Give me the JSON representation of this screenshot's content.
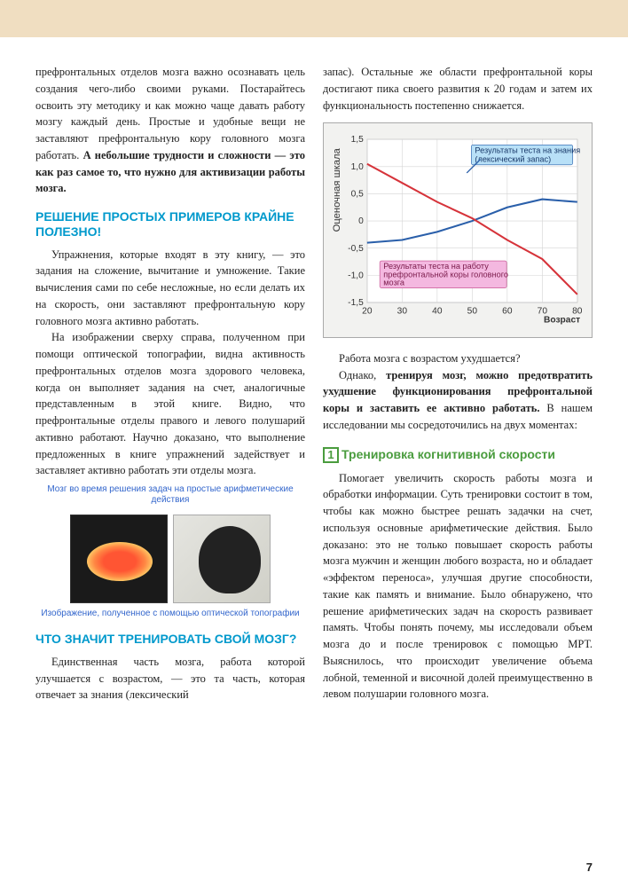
{
  "page_number": "7",
  "top_bar_color": "#f0dec1",
  "left": {
    "p1": "префронтальных отделов мозга важно осознавать цель создания чего-либо своими руками. Постарайтесь освоить эту методику и как можно чаще давать работу мозгу каждый день. Простые и удобные вещи не заставляют префронтальную кору головного мозга работать. ",
    "p1_bold": "А небольшие трудности и сложности — это как раз самое то, что нужно для активизации работы мозга.",
    "h1": "РЕШЕНИЕ ПРОСТЫХ ПРИМЕРОВ КРАЙНЕ ПОЛЕЗНО!",
    "p2": "Упражнения, которые входят в эту книгу, — это задания на сложение, вычитание и умножение. Такие вычисления сами по себе несложные, но если делать их на скорость, они заставляют префронтальную кору головного мозга активно работать.",
    "p3": "На изображении сверху справа, полученном при помощи оптической топографии, видна активность префронтальных отделов мозга здорового человека, когда он выполняет задания на счет, аналогичные представленным в этой книге. Видно, что префронтальные отделы правого и левого полушарий активно работают. Научно доказано, что выполнение предложенных в книге упражнений задействует и заставляет активно работать эти отделы мозга.",
    "img_caption_top": "Мозг во время решения задач на простые арифметические действия",
    "img_caption_bottom": "Изображение, полученное с помощью оптической топографии",
    "h2": "ЧТО ЗНАЧИТ ТРЕНИРОВАТЬ СВОЙ МОЗГ?",
    "p4": "Единственная часть мозга, работа которой улучшается с возрастом, — это та часть, которая отвечает за знания (лексический"
  },
  "right": {
    "p1": "запас). Остальные же области префронтальной коры достигают пика своего развития к 20 годам и затем их функциональность постепенно снижается.",
    "p2": "Работа мозга с возрастом ухудшается?",
    "p3a": "Однако, ",
    "p3_bold": "тренируя мозг, можно предотвратить ухудшение функционирования префронтальной коры и заставить ее активно работать.",
    "p3b": " В нашем исследовании мы сосредоточились на двух моментах:",
    "h1_num": "1",
    "h1": "Тренировка когнитивной скорости",
    "p4": "Помогает увеличить скорость работы мозга и обработки информации. Суть тренировки состоит в том, чтобы как можно быстрее решать задачки на счет, используя основные арифметические действия. Было доказано: это не только повышает скорость работы мозга мужчин и женщин любого возраста, но и обладает «эффектом переноса», улучшая другие способности, такие как память и внимание. Было обнаружено, что решение арифметических задач на скорость развивает память. Чтобы понять почему, мы исследовали объем мозга до и после тренировок с помощью МРТ. Выяснилось, что происходит увеличение объема лобной, теменной и височной долей преимущественно в левом полушарии головного мозга."
  },
  "chart": {
    "type": "line",
    "background_color": "#f2f2f0",
    "plot_bg": "#ffffff",
    "grid_color": "#d5d5d5",
    "xlabel": "Возраст",
    "ylabel": "Оценочная шкала",
    "xlim": [
      20,
      80
    ],
    "ylim": [
      -1.5,
      1.5
    ],
    "xticks": [
      20,
      30,
      40,
      50,
      60,
      70,
      80
    ],
    "yticks": [
      -1.5,
      -1.0,
      -0.5,
      0,
      0.5,
      1.0,
      1.5
    ],
    "series": [
      {
        "name": "blue",
        "label": "Результаты теста на знания (лексический запас)",
        "label_bg": "#b8e0f7",
        "color": "#2a5faa",
        "x": [
          20,
          30,
          40,
          50,
          60,
          70,
          80
        ],
        "y": [
          -0.4,
          -0.35,
          -0.2,
          0.0,
          0.25,
          0.4,
          0.35
        ]
      },
      {
        "name": "red",
        "label": "Результаты теста на работу префронтальной коры головного мозга",
        "label_bg": "#f4b8e0",
        "color": "#d6333a",
        "x": [
          20,
          30,
          40,
          50,
          60,
          70,
          80
        ],
        "y": [
          1.05,
          0.7,
          0.35,
          0.05,
          -0.35,
          -0.7,
          -1.35
        ]
      }
    ],
    "line_width": 2,
    "label_fontsize": 10,
    "tick_fontsize": 10
  }
}
